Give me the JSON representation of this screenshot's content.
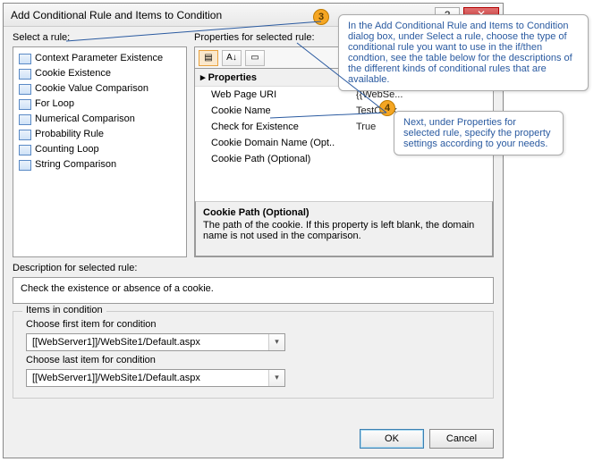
{
  "colors": {
    "accent_blue": "#2a5aa0",
    "badge_bg": "#f5a623",
    "badge_border": "#c07c00"
  },
  "titlebar": {
    "title": "Add Conditional Rule and Items to Condition",
    "help_glyph": "?",
    "close_glyph": "✕"
  },
  "select_rule": {
    "label": "Select a rule:",
    "items": [
      "Context Parameter Existence",
      "Cookie Existence",
      "Cookie Value Comparison",
      "For Loop",
      "Numerical Comparison",
      "Probability Rule",
      "Counting Loop",
      "String Comparison"
    ],
    "selected_index": 1
  },
  "properties": {
    "label": "Properties for selected rule:",
    "toolbar": {
      "cat_glyph": "▤",
      "az_glyph": "A↓",
      "page_glyph": "▭"
    },
    "section": "Properties",
    "rows": [
      {
        "name": "Web Page URI",
        "value": "{{WebSe..."
      },
      {
        "name": "Cookie Name",
        "value": "TestCook..."
      },
      {
        "name": "Check for Existence",
        "value": "True"
      },
      {
        "name": "Cookie Domain Name (Opt..",
        "value": ""
      },
      {
        "name": "Cookie Path (Optional)",
        "value": ""
      }
    ],
    "desc_title": "Cookie Path (Optional)",
    "desc_text": "The path of the cookie. If this property is left blank, the domain name is not used in the comparison."
  },
  "description": {
    "label": "Description for selected rule:",
    "text": "Check the existence or absence of a cookie."
  },
  "items_in_condition": {
    "legend": "Items in condition",
    "first_label": "Choose first item for condition",
    "first_value": "[[WebServer1]]/WebSite1/Default.aspx",
    "last_label": "Choose last item for condition",
    "last_value": "[[WebServer1]]/WebSite1/Default.aspx"
  },
  "buttons": {
    "ok": "OK",
    "cancel": "Cancel"
  },
  "callouts": {
    "c3_num": "3",
    "c3_text": "In the Add Conditional Rule and Items to Condition dialog box, under Select a rule, choose the type of conditional rule you want to use in the if/then condtion, see the table below for the descriptions of the different kinds of conditional rules that are available.",
    "c4_num": "4",
    "c4_text": "Next, under Properties for selected rule, specify the property settings according to your needs."
  }
}
